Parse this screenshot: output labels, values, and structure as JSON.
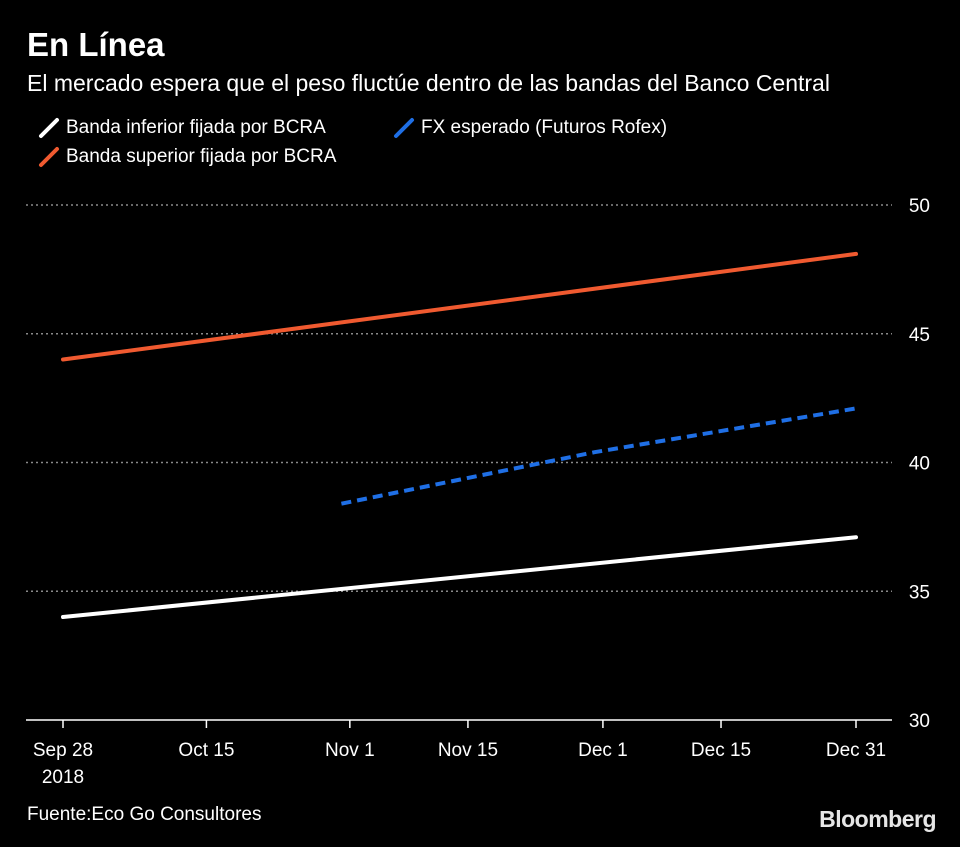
{
  "header": {
    "title": "En Línea",
    "subtitle": "El mercado espera que el peso fluctúe dentro de las bandas del Banco Central"
  },
  "footer": {
    "source": "Fuente:Eco Go Consultores",
    "brand": "Bloomberg"
  },
  "chart_data": {
    "type": "line",
    "title": "En Línea",
    "subtitle": "El mercado espera que el peso fluctúe dentro de las bandas del Banco Central",
    "xlabel": "",
    "ylabel": "",
    "ylim": [
      30,
      50
    ],
    "yticks": [
      30,
      35,
      40,
      45,
      50
    ],
    "xlim": [
      "2018-09-28",
      "2018-12-31"
    ],
    "xticks": [
      {
        "date": "2018-09-28",
        "label": "Sep 28",
        "sublabel": "2018"
      },
      {
        "date": "2018-10-15",
        "label": "Oct 15",
        "sublabel": ""
      },
      {
        "date": "2018-11-01",
        "label": "Nov 1",
        "sublabel": ""
      },
      {
        "date": "2018-11-15",
        "label": "Nov 15",
        "sublabel": ""
      },
      {
        "date": "2018-12-01",
        "label": "Dec 1",
        "sublabel": ""
      },
      {
        "date": "2018-12-15",
        "label": "Dec 15",
        "sublabel": ""
      },
      {
        "date": "2018-12-31",
        "label": "Dec 31",
        "sublabel": ""
      }
    ],
    "grid": true,
    "legend_position": "top-left",
    "series": [
      {
        "name": "Banda inferior fijada por BCRA",
        "color": "#ffffff",
        "style": "solid",
        "x": [
          "2018-09-28",
          "2018-12-31"
        ],
        "values": [
          34.0,
          37.1
        ]
      },
      {
        "name": "FX esperado (Futuros Rofex)",
        "color": "#1f6fe5",
        "style": "dashed",
        "x": [
          "2018-10-31",
          "2018-11-30",
          "2018-12-31"
        ],
        "values": [
          38.4,
          40.4,
          42.1
        ]
      },
      {
        "name": "Banda superior fijada por BCRA",
        "color": "#f05a30",
        "style": "solid",
        "x": [
          "2018-09-28",
          "2018-12-31"
        ],
        "values": [
          44.0,
          48.1
        ]
      }
    ]
  }
}
